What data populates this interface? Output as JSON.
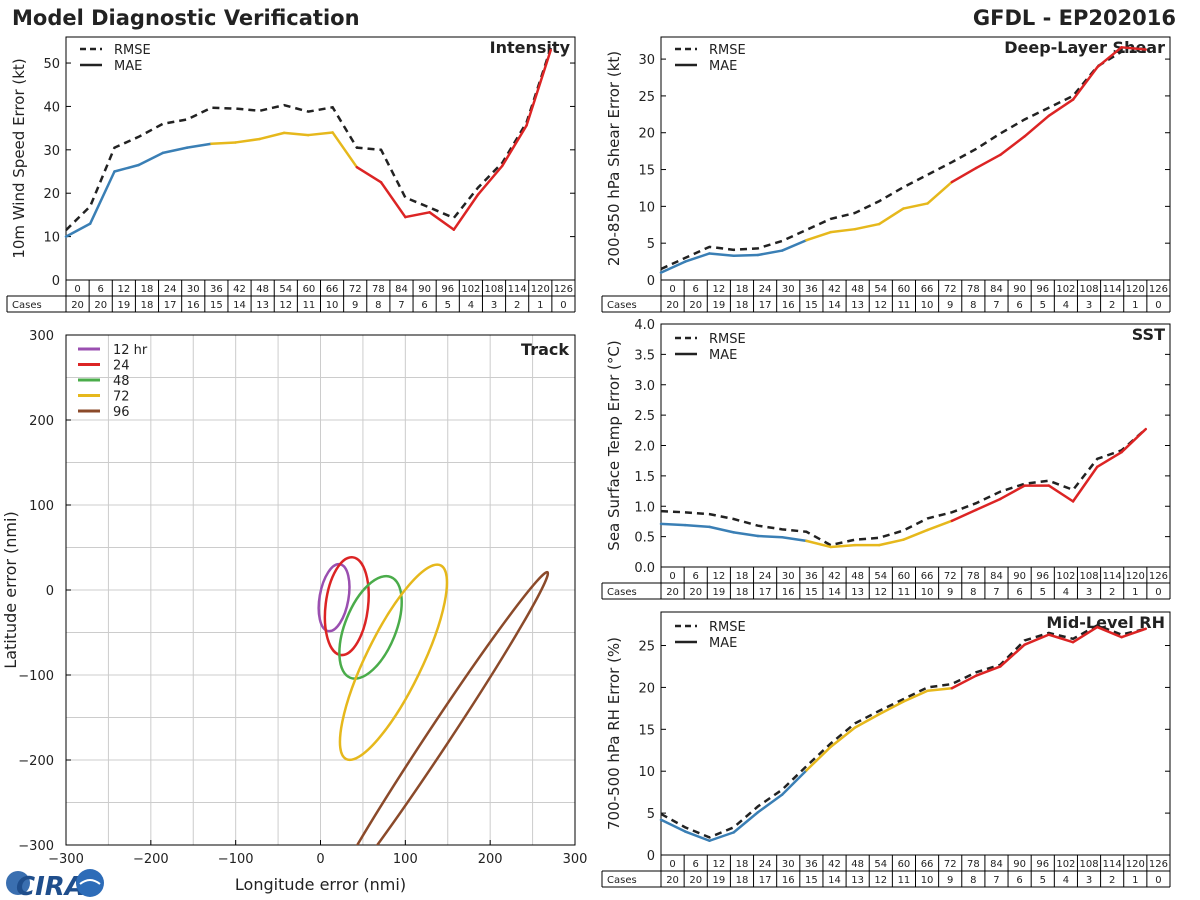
{
  "header": {
    "title": "Model Diagnostic Verification",
    "model_storm": "GFDL - EP202016"
  },
  "logo": {
    "text": "CIRA"
  },
  "colors": {
    "blue": "#3a7fb5",
    "yellow": "#e6b81c",
    "red": "#dc2424",
    "rmse": "#222222",
    "purple": "#9a4fb0",
    "green": "#4aac4a",
    "brown": "#8b4a2a"
  },
  "hours": [
    "0",
    "6",
    "12",
    "18",
    "24",
    "30",
    "36",
    "42",
    "48",
    "54",
    "60",
    "66",
    "72",
    "78",
    "84",
    "90",
    "96",
    "102",
    "108",
    "114",
    "120",
    "126"
  ],
  "cases": [
    "20",
    "20",
    "19",
    "18",
    "17",
    "16",
    "15",
    "14",
    "13",
    "12",
    "11",
    "10",
    "9",
    "8",
    "7",
    "6",
    "5",
    "4",
    "3",
    "2",
    "1",
    "0"
  ],
  "cases_label": "Cases",
  "legend_rmse": "RMSE",
  "legend_mae": "MAE",
  "chart_data": [
    {
      "id": "intensity",
      "type": "line",
      "title": "Intensity",
      "ylabel": "10m Wind Speed Error (kt)",
      "ylim": [
        0,
        56
      ],
      "yticks": [
        0,
        10,
        20,
        30,
        40,
        50
      ],
      "x": [
        0,
        6,
        12,
        18,
        24,
        30,
        36,
        42,
        48,
        54,
        60,
        66,
        72,
        78,
        84,
        90,
        96,
        102,
        108,
        114,
        120
      ],
      "series": [
        {
          "name": "RMSE",
          "values": [
            11.5,
            17,
            30.5,
            33,
            36,
            37,
            39.7,
            39.5,
            39,
            40.3,
            38.8,
            39.8,
            30.5,
            30,
            19,
            16.7,
            14.3,
            21.3,
            27,
            36.3,
            53.5
          ]
        },
        {
          "name": "MAE",
          "values": [
            10,
            13,
            25,
            26.5,
            29.3,
            30.5,
            31.4,
            31.7,
            32.5,
            33.9,
            33.4,
            34,
            26,
            22.5,
            14.5,
            15.6,
            11.6,
            19.7,
            26.3,
            35.6,
            53
          ]
        }
      ]
    },
    {
      "id": "shear",
      "type": "line",
      "title": "Deep-Layer Shear",
      "ylabel": "200-850 hPa Shear Error (kt)",
      "ylim": [
        0,
        33
      ],
      "yticks": [
        0,
        5,
        10,
        15,
        20,
        25,
        30
      ],
      "x": [
        0,
        6,
        12,
        18,
        24,
        30,
        36,
        42,
        48,
        54,
        60,
        66,
        72,
        78,
        84,
        90,
        96,
        102,
        108,
        114,
        120
      ],
      "series": [
        {
          "name": "RMSE",
          "values": [
            1.5,
            3,
            4.5,
            4.1,
            4.3,
            5.3,
            6.8,
            8.3,
            9.1,
            10.7,
            12.6,
            14.3,
            16,
            17.8,
            19.9,
            21.8,
            23.4,
            25,
            29,
            31,
            31
          ]
        },
        {
          "name": "MAE",
          "values": [
            1,
            2.5,
            3.6,
            3.3,
            3.4,
            4,
            5.4,
            6.5,
            6.9,
            7.6,
            9.7,
            10.4,
            13.3,
            15.2,
            17,
            19.5,
            22.3,
            24.5,
            28.9,
            31.6,
            31.3
          ]
        }
      ]
    },
    {
      "id": "sst",
      "type": "line",
      "title": "SST",
      "ylabel": "Sea Surface Temp Error (°C)",
      "ylim": [
        0,
        4
      ],
      "yticks": [
        "0.0",
        "0.5",
        "1.0",
        "1.5",
        "2.0",
        "2.5",
        "3.0",
        "3.5",
        "4.0"
      ],
      "x": [
        0,
        6,
        12,
        18,
        24,
        30,
        36,
        42,
        48,
        54,
        60,
        66,
        72,
        78,
        84,
        90,
        96,
        102,
        108,
        114,
        120
      ],
      "series": [
        {
          "name": "RMSE",
          "values": [
            0.92,
            0.9,
            0.87,
            0.79,
            0.68,
            0.62,
            0.58,
            0.36,
            0.45,
            0.48,
            0.6,
            0.8,
            0.9,
            1.05,
            1.24,
            1.37,
            1.42,
            1.27,
            1.78,
            1.92,
            2.27
          ]
        },
        {
          "name": "MAE",
          "values": [
            0.71,
            0.69,
            0.66,
            0.57,
            0.51,
            0.49,
            0.43,
            0.33,
            0.36,
            0.36,
            0.45,
            0.61,
            0.76,
            0.94,
            1.12,
            1.34,
            1.34,
            1.08,
            1.65,
            1.89,
            2.27
          ]
        }
      ]
    },
    {
      "id": "rh",
      "type": "line",
      "title": "Mid-Level RH",
      "ylabel": "700-500 hPa RH Error (%)",
      "ylim": [
        0,
        29
      ],
      "yticks": [
        0,
        5,
        10,
        15,
        20,
        25
      ],
      "x": [
        0,
        6,
        12,
        18,
        24,
        30,
        36,
        42,
        48,
        54,
        60,
        66,
        72,
        78,
        84,
        90,
        96,
        102,
        108,
        114,
        120
      ],
      "series": [
        {
          "name": "RMSE",
          "values": [
            4.9,
            3.3,
            2.1,
            3.3,
            5.8,
            7.8,
            10.6,
            13.3,
            15.7,
            17.2,
            18.6,
            20,
            20.4,
            21.8,
            22.7,
            25.6,
            26.5,
            25.8,
            27.4,
            26.3,
            27
          ]
        },
        {
          "name": "MAE",
          "values": [
            4.2,
            2.8,
            1.7,
            2.7,
            5.1,
            7.2,
            10.1,
            12.9,
            15.2,
            16.8,
            18.3,
            19.6,
            19.9,
            21.4,
            22.5,
            25.1,
            26.3,
            25.4,
            27.2,
            26,
            27
          ]
        }
      ]
    },
    {
      "id": "track",
      "type": "scatter",
      "title": "Track",
      "xlabel": "Longitude error (nmi)",
      "ylabel": "Latitude error (nmi)",
      "xlim": [
        -300,
        300
      ],
      "ylim": [
        -300,
        300
      ],
      "xticks": [
        -300,
        -200,
        -100,
        0,
        100,
        200,
        300
      ],
      "yticks": [
        -300,
        -200,
        -100,
        0,
        100,
        200,
        300
      ],
      "ellipses": [
        {
          "label": "12 hr",
          "cx": 16,
          "cy": -9,
          "rx_along": 40,
          "rx_across": 17,
          "angle_deg": 80
        },
        {
          "label": "24",
          "cx": 31,
          "cy": -19,
          "rx_along": 58,
          "rx_across": 25,
          "angle_deg": 83
        },
        {
          "label": "48",
          "cx": 59,
          "cy": -44,
          "rx_along": 64,
          "rx_across": 30,
          "angle_deg": 68
        },
        {
          "label": "72",
          "cx": 86,
          "cy": -85,
          "rx_along": 127,
          "rx_across": 33,
          "angle_deg": 64
        },
        {
          "label": "96",
          "cx": 139,
          "cy": -173,
          "rx_along": 233,
          "rx_across": 13,
          "angle_deg": 56.5
        }
      ]
    }
  ]
}
